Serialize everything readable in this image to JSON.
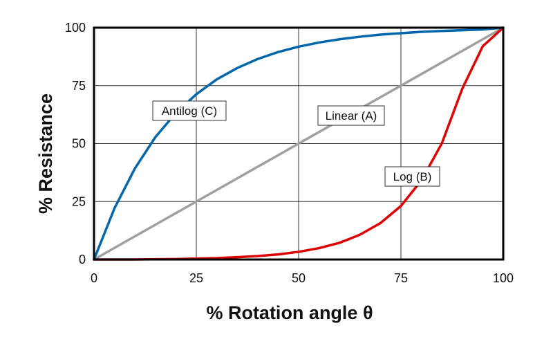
{
  "chart_data": {
    "type": "line",
    "title": "",
    "xlabel": "% Rotation angle θ",
    "ylabel": "% Resistance",
    "xlim": [
      0,
      100
    ],
    "ylim": [
      0,
      100
    ],
    "xticks": [
      0,
      25,
      50,
      75,
      100
    ],
    "yticks": [
      0,
      25,
      50,
      75,
      100
    ],
    "grid": true,
    "legend": "none (curves labeled inline)",
    "series": [
      {
        "name": "Antilog (C)",
        "color": "#0066aa",
        "x": [
          0,
          5,
          10,
          15,
          20,
          25,
          30,
          35,
          40,
          45,
          50,
          55,
          60,
          65,
          70,
          75,
          80,
          85,
          90,
          95,
          100
        ],
        "y": [
          0,
          22.1,
          39.3,
          52.8,
          63.2,
          71.3,
          77.7,
          82.6,
          86.5,
          89.5,
          91.8,
          93.6,
          95.0,
          96.1,
          97.0,
          97.6,
          98.2,
          98.6,
          98.9,
          99.2,
          100
        ]
      },
      {
        "name": "Linear (A)",
        "color": "#a0a0a0",
        "x": [
          0,
          100
        ],
        "y": [
          0,
          100
        ]
      },
      {
        "name": "Log (B)",
        "color": "#dd0000",
        "x": [
          0,
          5,
          10,
          15,
          20,
          25,
          30,
          35,
          40,
          45,
          50,
          55,
          60,
          65,
          70,
          75,
          80,
          85,
          90,
          95,
          100
        ],
        "y": [
          0,
          0.0,
          0.0,
          0.1,
          0.2,
          0.4,
          0.6,
          1.0,
          1.5,
          2.2,
          3.3,
          4.9,
          7.2,
          10.7,
          15.7,
          23.1,
          34.1,
          50.1,
          73.7,
          92.0,
          100
        ]
      }
    ]
  },
  "labels": {
    "antilog": "Antilog (C)",
    "linear": "Linear (A)",
    "log": "Log (B)"
  },
  "colors": {
    "frame": "#000000",
    "grid": "#333333",
    "antilog": "#0066aa",
    "linear": "#a0a0a0",
    "log": "#dd0000"
  }
}
